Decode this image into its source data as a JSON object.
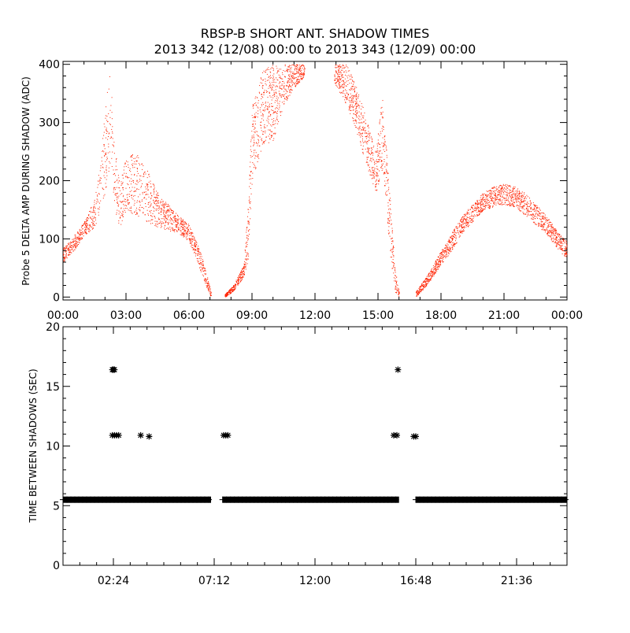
{
  "title_line1": "RBSP-B SHORT ANT. SHADOW TIMES",
  "title_line2": "2013 342 (12/08) 00:00 to 2013 343 (12/09) 00:00",
  "colors": {
    "top_points": "#ff2200",
    "bottom_points": "#000000",
    "axes": "#000000",
    "background": "#ffffff"
  },
  "chart_data": [
    {
      "type": "scatter",
      "ylabel": "Probe 5 DELTA AMP DURING SHADOW (ADC)",
      "xlabel": "",
      "x_unit": "hours",
      "xlim": [
        0,
        24
      ],
      "ylim": [
        -5,
        405
      ],
      "x_ticks": [
        {
          "x": 0,
          "label": "00:00"
        },
        {
          "x": 3,
          "label": "03:00"
        },
        {
          "x": 6,
          "label": "06:00"
        },
        {
          "x": 9,
          "label": "09:00"
        },
        {
          "x": 12,
          "label": "12:00"
        },
        {
          "x": 15,
          "label": "15:00"
        },
        {
          "x": 18,
          "label": "18:00"
        },
        {
          "x": 21,
          "label": "21:00"
        },
        {
          "x": 24,
          "label": "00:00"
        }
      ],
      "y_ticks": [
        0,
        100,
        200,
        300,
        400
      ],
      "envelope": [
        {
          "x": 0.0,
          "lo": 60,
          "hi": 85
        },
        {
          "x": 0.5,
          "lo": 80,
          "hi": 105
        },
        {
          "x": 1.0,
          "lo": 105,
          "hi": 130
        },
        {
          "x": 1.5,
          "lo": 120,
          "hi": 170
        },
        {
          "x": 1.8,
          "lo": 150,
          "hi": 240
        },
        {
          "x": 2.0,
          "lo": 180,
          "hi": 330
        },
        {
          "x": 2.25,
          "lo": 230,
          "hi": 390
        },
        {
          "x": 2.45,
          "lo": 140,
          "hi": 260
        },
        {
          "x": 2.7,
          "lo": 120,
          "hi": 200
        },
        {
          "x": 3.0,
          "lo": 150,
          "hi": 240
        },
        {
          "x": 3.5,
          "lo": 140,
          "hi": 250
        },
        {
          "x": 4.0,
          "lo": 130,
          "hi": 220
        },
        {
          "x": 4.5,
          "lo": 120,
          "hi": 180
        },
        {
          "x": 5.0,
          "lo": 115,
          "hi": 160
        },
        {
          "x": 5.5,
          "lo": 110,
          "hi": 140
        },
        {
          "x": 6.0,
          "lo": 95,
          "hi": 125
        },
        {
          "x": 6.3,
          "lo": 70,
          "hi": 100
        },
        {
          "x": 6.6,
          "lo": 40,
          "hi": 70
        },
        {
          "x": 6.9,
          "lo": 10,
          "hi": 30
        },
        {
          "x": 7.05,
          "lo": 0,
          "hi": 8
        }
      ],
      "envelope2": [
        {
          "x": 7.7,
          "lo": 0,
          "hi": 5
        },
        {
          "x": 8.1,
          "lo": 10,
          "hi": 20
        },
        {
          "x": 8.6,
          "lo": 35,
          "hi": 55
        },
        {
          "x": 8.8,
          "lo": 60,
          "hi": 160
        },
        {
          "x": 9.0,
          "lo": 200,
          "hi": 330
        },
        {
          "x": 9.5,
          "lo": 260,
          "hi": 390
        },
        {
          "x": 10.0,
          "lo": 270,
          "hi": 400
        },
        {
          "x": 10.5,
          "lo": 330,
          "hi": 400
        },
        {
          "x": 11.0,
          "lo": 360,
          "hi": 400
        },
        {
          "x": 11.5,
          "lo": 380,
          "hi": 400
        }
      ],
      "envelope3": [
        {
          "x": 12.9,
          "lo": 370,
          "hi": 400
        },
        {
          "x": 13.5,
          "lo": 330,
          "hi": 400
        },
        {
          "x": 14.0,
          "lo": 280,
          "hi": 360
        },
        {
          "x": 14.5,
          "lo": 220,
          "hi": 300
        },
        {
          "x": 14.9,
          "lo": 180,
          "hi": 250
        },
        {
          "x": 15.2,
          "lo": 220,
          "hi": 350
        },
        {
          "x": 15.4,
          "lo": 150,
          "hi": 250
        },
        {
          "x": 15.6,
          "lo": 60,
          "hi": 160
        },
        {
          "x": 15.8,
          "lo": 10,
          "hi": 50
        },
        {
          "x": 16.0,
          "lo": 0,
          "hi": 10
        }
      ],
      "envelope4": [
        {
          "x": 16.8,
          "lo": 0,
          "hi": 10
        },
        {
          "x": 17.3,
          "lo": 20,
          "hi": 35
        },
        {
          "x": 18.0,
          "lo": 55,
          "hi": 80
        },
        {
          "x": 18.5,
          "lo": 80,
          "hi": 110
        },
        {
          "x": 19.0,
          "lo": 110,
          "hi": 140
        },
        {
          "x": 19.5,
          "lo": 130,
          "hi": 160
        },
        {
          "x": 20.0,
          "lo": 150,
          "hi": 180
        },
        {
          "x": 20.5,
          "lo": 155,
          "hi": 190
        },
        {
          "x": 21.0,
          "lo": 160,
          "hi": 195
        },
        {
          "x": 21.5,
          "lo": 155,
          "hi": 190
        },
        {
          "x": 22.0,
          "lo": 140,
          "hi": 180
        },
        {
          "x": 22.5,
          "lo": 125,
          "hi": 160
        },
        {
          "x": 23.0,
          "lo": 110,
          "hi": 140
        },
        {
          "x": 23.5,
          "lo": 85,
          "hi": 115
        },
        {
          "x": 24.0,
          "lo": 65,
          "hi": 95
        }
      ]
    },
    {
      "type": "scatter",
      "ylabel": "TIME BETWEEN SHADOWS (SEC)",
      "xlabel": "",
      "x_unit": "hours",
      "xlim": [
        0,
        24
      ],
      "ylim": [
        0,
        20
      ],
      "x_ticks": [
        {
          "x": 2.4,
          "label": "02:24"
        },
        {
          "x": 7.2,
          "label": "07:12"
        },
        {
          "x": 12.0,
          "label": "12:00"
        },
        {
          "x": 16.8,
          "label": "16:48"
        },
        {
          "x": 21.6,
          "label": "21:36"
        }
      ],
      "y_ticks": [
        0,
        5,
        10,
        15,
        20
      ],
      "baseline": {
        "y": 5.5,
        "segments": [
          [
            0.0,
            7.05
          ],
          [
            7.6,
            16.0
          ],
          [
            16.8,
            24.0
          ]
        ]
      },
      "points": [
        {
          "x": 2.35,
          "y": 16.4
        },
        {
          "x": 2.4,
          "y": 16.4
        },
        {
          "x": 2.45,
          "y": 16.4
        },
        {
          "x": 2.35,
          "y": 10.9
        },
        {
          "x": 2.45,
          "y": 10.9
        },
        {
          "x": 2.55,
          "y": 10.9
        },
        {
          "x": 2.65,
          "y": 10.9
        },
        {
          "x": 3.7,
          "y": 10.9
        },
        {
          "x": 4.1,
          "y": 10.8
        },
        {
          "x": 7.65,
          "y": 10.9
        },
        {
          "x": 7.75,
          "y": 10.9
        },
        {
          "x": 7.85,
          "y": 10.9
        },
        {
          "x": 15.75,
          "y": 10.9
        },
        {
          "x": 15.9,
          "y": 10.9
        },
        {
          "x": 15.95,
          "y": 16.4
        },
        {
          "x": 16.7,
          "y": 10.8
        },
        {
          "x": 16.8,
          "y": 10.8
        }
      ]
    }
  ]
}
